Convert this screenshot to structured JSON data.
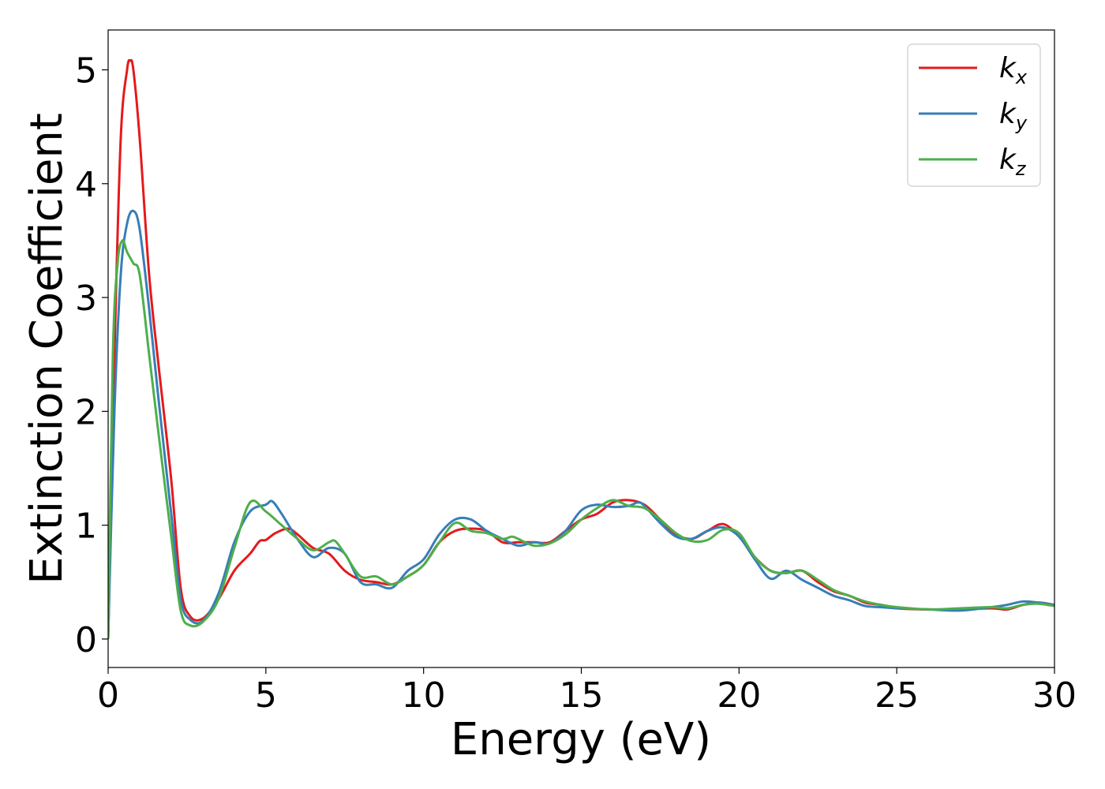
{
  "chart_data": {
    "type": "line",
    "title": "",
    "xlabel": "Energy (eV)",
    "ylabel": "Extinction Coefficient",
    "xlim": [
      0,
      30
    ],
    "ylim": [
      -0.25,
      5.35
    ],
    "xticks": [
      0,
      5,
      10,
      15,
      20,
      25,
      30
    ],
    "yticks": [
      0,
      1,
      2,
      3,
      4,
      5
    ],
    "grid": false,
    "legend_position": "top-right",
    "series": [
      {
        "name": "k",
        "subscript": "x",
        "color": "#e41a1c",
        "x": [
          0,
          0.2,
          0.4,
          0.6,
          0.7,
          0.8,
          1.0,
          1.3,
          1.6,
          2.0,
          2.3,
          2.6,
          3.0,
          3.5,
          4.0,
          4.5,
          4.8,
          5.0,
          5.3,
          5.7,
          6.0,
          6.5,
          7.0,
          7.5,
          8.0,
          8.5,
          9.0,
          9.5,
          10.0,
          10.5,
          11.0,
          11.5,
          12.0,
          12.5,
          13.0,
          13.5,
          14.0,
          14.5,
          15.0,
          15.5,
          16.0,
          16.5,
          17.0,
          17.5,
          18.0,
          18.5,
          19.0,
          19.5,
          20.0,
          20.5,
          21.0,
          21.5,
          22.0,
          22.5,
          23.0,
          23.5,
          24.0,
          24.5,
          25.0,
          26.0,
          27.0,
          28.0,
          28.5,
          29.0,
          29.5,
          30.0
        ],
        "y": [
          0.0,
          2.5,
          4.4,
          5.0,
          5.08,
          5.0,
          4.4,
          3.2,
          2.4,
          1.4,
          0.45,
          0.2,
          0.18,
          0.35,
          0.6,
          0.75,
          0.86,
          0.87,
          0.93,
          0.97,
          0.92,
          0.8,
          0.75,
          0.6,
          0.52,
          0.5,
          0.48,
          0.55,
          0.65,
          0.85,
          0.95,
          0.97,
          0.95,
          0.85,
          0.85,
          0.85,
          0.85,
          0.95,
          1.05,
          1.1,
          1.2,
          1.22,
          1.18,
          1.05,
          0.92,
          0.88,
          0.95,
          1.01,
          0.9,
          0.72,
          0.6,
          0.58,
          0.6,
          0.5,
          0.42,
          0.38,
          0.32,
          0.3,
          0.27,
          0.26,
          0.26,
          0.27,
          0.26,
          0.3,
          0.32,
          0.3
        ]
      },
      {
        "name": "k",
        "subscript": "y",
        "color": "#377eb8",
        "x": [
          0,
          0.2,
          0.4,
          0.6,
          0.8,
          1.0,
          1.3,
          1.6,
          2.0,
          2.3,
          2.6,
          3.0,
          3.5,
          4.0,
          4.5,
          5.0,
          5.2,
          5.5,
          6.0,
          6.5,
          7.0,
          7.5,
          8.0,
          8.5,
          9.0,
          9.5,
          10.0,
          10.5,
          11.0,
          11.5,
          12.0,
          12.5,
          13.0,
          13.5,
          14.0,
          14.5,
          15.0,
          15.5,
          16.0,
          16.5,
          16.8,
          17.0,
          17.5,
          18.0,
          18.5,
          19.0,
          19.5,
          20.0,
          20.5,
          21.0,
          21.5,
          22.0,
          22.5,
          23.0,
          23.5,
          24.0,
          24.5,
          25.0,
          26.0,
          27.0,
          28.0,
          28.5,
          29.0,
          29.5,
          30.0
        ],
        "y": [
          0.0,
          2.0,
          3.2,
          3.65,
          3.76,
          3.6,
          2.9,
          2.1,
          1.1,
          0.35,
          0.17,
          0.16,
          0.4,
          0.85,
          1.12,
          1.18,
          1.21,
          1.1,
          0.88,
          0.72,
          0.8,
          0.75,
          0.5,
          0.48,
          0.45,
          0.6,
          0.7,
          0.92,
          1.05,
          1.05,
          0.95,
          0.88,
          0.82,
          0.85,
          0.84,
          0.95,
          1.13,
          1.18,
          1.16,
          1.17,
          1.2,
          1.17,
          1.02,
          0.9,
          0.88,
          0.95,
          0.98,
          0.9,
          0.7,
          0.53,
          0.6,
          0.52,
          0.45,
          0.38,
          0.34,
          0.29,
          0.28,
          0.27,
          0.26,
          0.25,
          0.28,
          0.3,
          0.33,
          0.32,
          0.3
        ]
      },
      {
        "name": "k",
        "subscript": "z",
        "color": "#4daf4a",
        "x": [
          0,
          0.15,
          0.3,
          0.45,
          0.6,
          0.8,
          1.0,
          1.3,
          1.6,
          2.0,
          2.3,
          2.6,
          3.0,
          3.5,
          4.0,
          4.5,
          5.0,
          5.5,
          6.0,
          6.5,
          7.0,
          7.2,
          7.5,
          8.0,
          8.5,
          9.0,
          9.5,
          10.0,
          10.5,
          11.0,
          11.5,
          12.0,
          12.5,
          12.8,
          13.0,
          13.5,
          14.0,
          14.5,
          15.0,
          15.5,
          16.0,
          16.5,
          17.0,
          17.5,
          18.0,
          18.5,
          19.0,
          19.5,
          20.0,
          20.5,
          21.0,
          21.5,
          22.0,
          22.5,
          23.0,
          23.5,
          24.0,
          24.5,
          25.0,
          26.0,
          27.0,
          28.0,
          28.5,
          29.0,
          29.5,
          30.0
        ],
        "y": [
          0.0,
          2.5,
          3.3,
          3.5,
          3.4,
          3.3,
          3.2,
          2.5,
          1.8,
          0.9,
          0.25,
          0.12,
          0.15,
          0.35,
          0.8,
          1.2,
          1.12,
          1.0,
          0.88,
          0.78,
          0.85,
          0.86,
          0.75,
          0.55,
          0.55,
          0.48,
          0.55,
          0.65,
          0.85,
          1.02,
          0.95,
          0.93,
          0.88,
          0.9,
          0.88,
          0.82,
          0.84,
          0.92,
          1.05,
          1.15,
          1.22,
          1.17,
          1.15,
          1.05,
          0.93,
          0.86,
          0.87,
          0.96,
          0.93,
          0.72,
          0.6,
          0.58,
          0.6,
          0.52,
          0.43,
          0.38,
          0.33,
          0.3,
          0.28,
          0.26,
          0.27,
          0.28,
          0.27,
          0.3,
          0.31,
          0.29
        ]
      }
    ]
  }
}
